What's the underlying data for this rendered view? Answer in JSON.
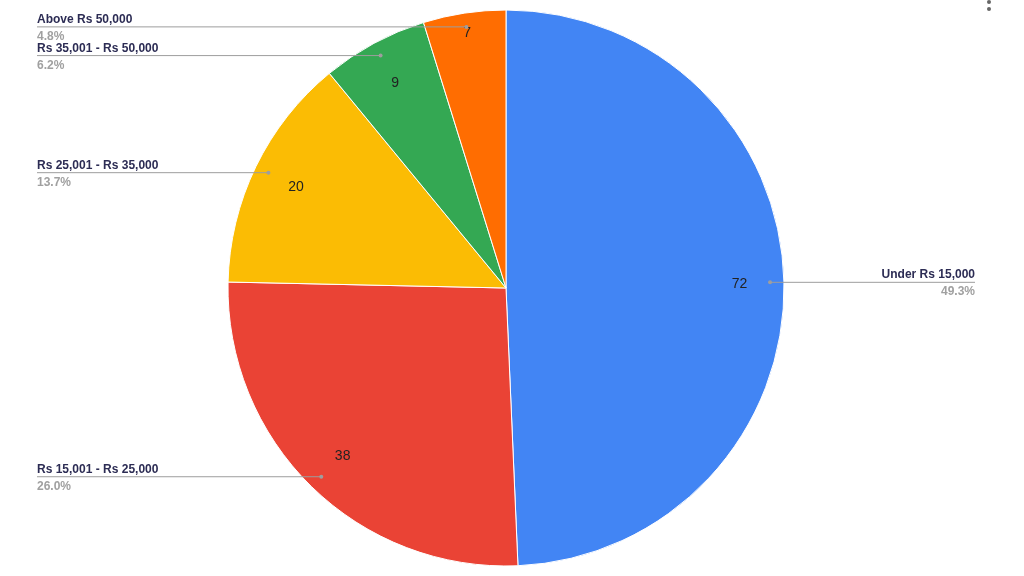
{
  "chart_data": {
    "type": "pie",
    "categories": [
      "Under Rs 15,000",
      "Rs 15,001 - Rs 25,000",
      "Rs 25,001 - Rs 35,000",
      "Rs 35,001 - Rs 50,000",
      "Above Rs  50,000"
    ],
    "values": [
      72,
      38,
      20,
      9,
      7
    ],
    "colors": [
      "#4285f4",
      "#ea4335",
      "#fbbc04",
      "#34a853",
      "#ff6d01"
    ],
    "annotations": [
      {
        "text": "49.3%",
        "x": "Under Rs 15,000"
      },
      {
        "text": "26.0%",
        "x": "Rs 15,001 - Rs 25,000"
      },
      {
        "text": "13.7%",
        "x": "Rs 25,001 - Rs 35,000"
      },
      {
        "text": "6.2%",
        "x": "Rs 35,001 - Rs 50,000"
      },
      {
        "text": "4.8%",
        "x": "Above Rs  50,000"
      }
    ],
    "data_labels": true
  }
}
